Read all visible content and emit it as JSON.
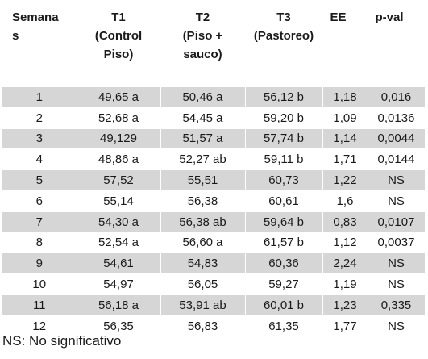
{
  "table": {
    "headers": {
      "semanas": "Semana\ns",
      "t1": "T1\n(Control\nPiso)",
      "t2": "T2\n(Piso +\nsauco)",
      "t3": "T3\n(Pastoreo)",
      "ee": "EE",
      "pval": "p-val"
    },
    "rows": [
      {
        "semana": "1",
        "t1": "49,65 a",
        "t2": "50,46 a",
        "t3": "56,12 b",
        "ee": "1,18",
        "pval": "0,016"
      },
      {
        "semana": "2",
        "t1": "52,68 a",
        "t2": "54,45 a",
        "t3": "59,20 b",
        "ee": "1,09",
        "pval": "0,0136"
      },
      {
        "semana": "3",
        "t1": "49,129",
        "t2": "51,57 a",
        "t3": "57,74 b",
        "ee": "1,14",
        "pval": "0,0044"
      },
      {
        "semana": "4",
        "t1": "48,86 a",
        "t2": "52,27 ab",
        "t3": "59,11 b",
        "ee": "1,71",
        "pval": "0,0144"
      },
      {
        "semana": "5",
        "t1": "57,52",
        "t2": "55,51",
        "t3": "60,73",
        "ee": "1,22",
        "pval": "NS"
      },
      {
        "semana": "6",
        "t1": "55,14",
        "t2": "56,38",
        "t3": "60,61",
        "ee": "1,6",
        "pval": "NS"
      },
      {
        "semana": "7",
        "t1": "54,30 a",
        "t2": "56,38 ab",
        "t3": "59,64 b",
        "ee": "0,83",
        "pval": "0,0107"
      },
      {
        "semana": "8",
        "t1": "52,54 a",
        "t2": "56,60 a",
        "t3": "61,57 b",
        "ee": "1,12",
        "pval": "0,0037"
      },
      {
        "semana": "9",
        "t1": "54,61",
        "t2": "54,83",
        "t3": "60,36",
        "ee": "2,24",
        "pval": "NS"
      },
      {
        "semana": "10",
        "t1": "54,97",
        "t2": "56,05",
        "t3": "59,27",
        "ee": "1,19",
        "pval": "NS"
      },
      {
        "semana": "11",
        "t1": "56,18 a",
        "t2": "53,91 ab",
        "t3": "60,01 b",
        "ee": "1,23",
        "pval": "0,335"
      },
      {
        "semana": "12",
        "t1": "56,35",
        "t2": "56,83",
        "t3": "61,35",
        "ee": "1,77",
        "pval": "NS"
      }
    ]
  },
  "footnote": "NS: No significativo",
  "colors": {
    "shaded_row": "#d6d6d6",
    "plain_row": "#ffffff",
    "text": "#1a1a1a"
  }
}
